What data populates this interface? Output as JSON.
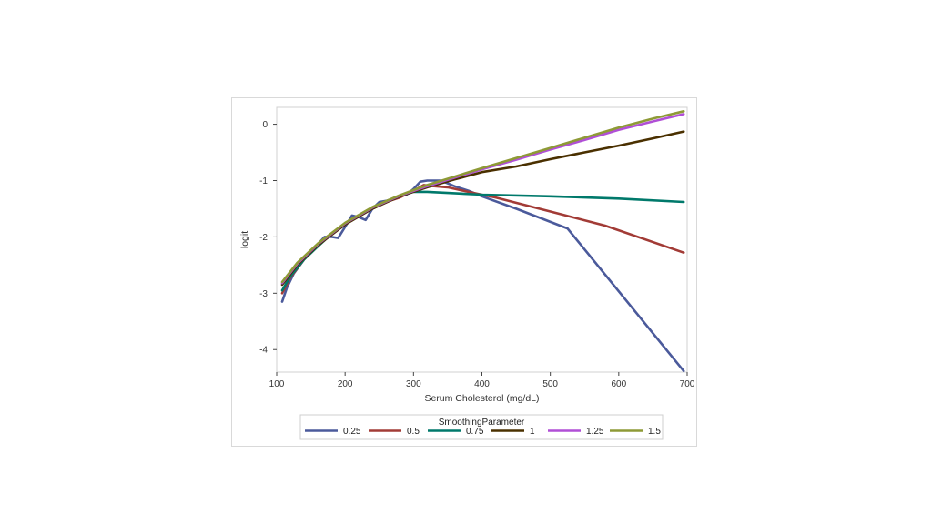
{
  "chart_data": {
    "type": "line",
    "xlabel": "Serum Cholesterol (mg/dL)",
    "ylabel": "logit",
    "xlim": [
      100,
      700
    ],
    "ylim": [
      -4.4,
      0.3
    ],
    "xticks": [
      100,
      200,
      300,
      400,
      500,
      600,
      700
    ],
    "yticks": [
      0,
      -1,
      -2,
      -3,
      -4
    ],
    "grid": false,
    "legend": {
      "title": "SmoothingParameter",
      "placement": "bottom"
    },
    "series": [
      {
        "name": "0.25",
        "color": "#4b5a9b",
        "x": [
          108,
          115,
          125,
          140,
          155,
          170,
          180,
          190,
          200,
          210,
          220,
          230,
          240,
          250,
          260,
          270,
          280,
          290,
          300,
          310,
          320,
          330,
          340,
          350,
          360,
          380,
          400,
          450,
          525,
          695
        ],
        "y": [
          -3.15,
          -2.9,
          -2.65,
          -2.4,
          -2.2,
          -2.0,
          -2.0,
          -2.02,
          -1.82,
          -1.62,
          -1.65,
          -1.7,
          -1.5,
          -1.38,
          -1.36,
          -1.32,
          -1.27,
          -1.25,
          -1.15,
          -1.02,
          -1.0,
          -1.0,
          -1.0,
          -1.05,
          -1.1,
          -1.18,
          -1.28,
          -1.5,
          -1.85,
          -4.38
        ]
      },
      {
        "name": "0.5",
        "color": "#a23b36",
        "x": [
          108,
          120,
          140,
          160,
          180,
          200,
          220,
          240,
          260,
          280,
          300,
          315,
          330,
          350,
          380,
          420,
          500,
          580,
          695
        ],
        "y": [
          -3.0,
          -2.72,
          -2.4,
          -2.17,
          -1.95,
          -1.78,
          -1.62,
          -1.5,
          -1.38,
          -1.3,
          -1.18,
          -1.08,
          -1.1,
          -1.12,
          -1.2,
          -1.3,
          -1.55,
          -1.8,
          -2.28
        ]
      },
      {
        "name": "0.75",
        "color": "#00796b",
        "x": [
          108,
          120,
          140,
          160,
          180,
          200,
          220,
          240,
          260,
          280,
          300,
          320,
          350,
          400,
          500,
          600,
          695
        ],
        "y": [
          -2.95,
          -2.7,
          -2.4,
          -2.17,
          -1.95,
          -1.78,
          -1.62,
          -1.5,
          -1.38,
          -1.28,
          -1.2,
          -1.2,
          -1.22,
          -1.25,
          -1.28,
          -1.32,
          -1.38
        ]
      },
      {
        "name": "1",
        "color": "#4a3000",
        "x": [
          108,
          130,
          160,
          200,
          240,
          280,
          320,
          360,
          400,
          450,
          500,
          550,
          600,
          650,
          695
        ],
        "y": [
          -2.85,
          -2.5,
          -2.15,
          -1.78,
          -1.5,
          -1.28,
          -1.12,
          -0.98,
          -0.85,
          -0.75,
          -0.62,
          -0.5,
          -0.38,
          -0.25,
          -0.13
        ]
      },
      {
        "name": "1.25",
        "color": "#b04fd6",
        "x": [
          108,
          130,
          160,
          200,
          240,
          280,
          320,
          360,
          400,
          450,
          500,
          550,
          600,
          650,
          695
        ],
        "y": [
          -2.82,
          -2.48,
          -2.13,
          -1.76,
          -1.48,
          -1.27,
          -1.1,
          -0.95,
          -0.8,
          -0.63,
          -0.45,
          -0.28,
          -0.1,
          0.05,
          0.18
        ]
      },
      {
        "name": "1.5",
        "color": "#8e9a36",
        "x": [
          108,
          130,
          160,
          200,
          240,
          280,
          320,
          360,
          400,
          450,
          500,
          550,
          600,
          650,
          695
        ],
        "y": [
          -2.8,
          -2.46,
          -2.12,
          -1.75,
          -1.47,
          -1.26,
          -1.08,
          -0.93,
          -0.78,
          -0.6,
          -0.42,
          -0.24,
          -0.06,
          0.1,
          0.23
        ]
      }
    ]
  }
}
